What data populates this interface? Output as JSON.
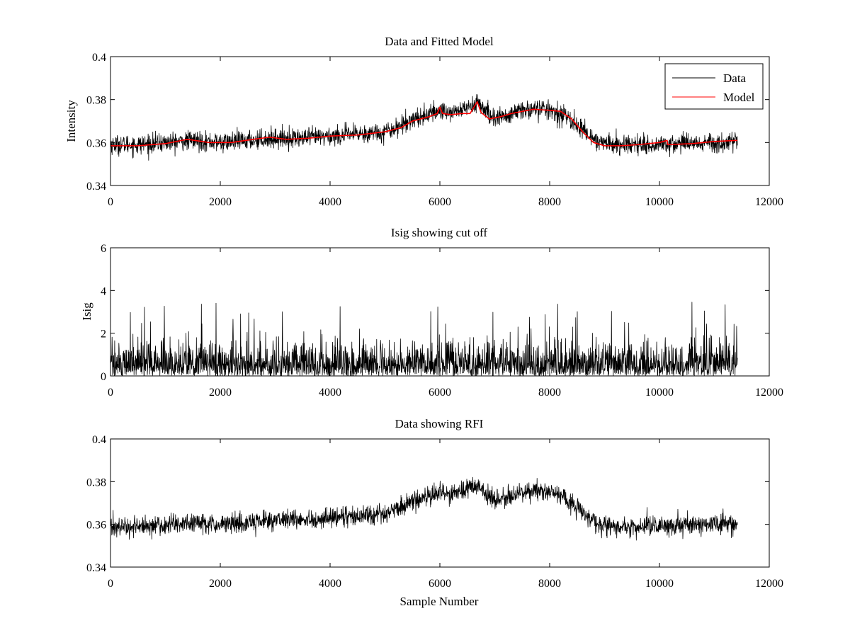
{
  "figure": {
    "background": "#ffffff"
  },
  "chart_data": [
    {
      "type": "line",
      "title": "Data and Fitted Model",
      "xlabel": "",
      "ylabel": "Intensity",
      "xlim": [
        0,
        12000
      ],
      "ylim": [
        0.34,
        0.4
      ],
      "xticks": [
        0,
        2000,
        4000,
        6000,
        8000,
        10000,
        12000
      ],
      "yticks": [
        0.34,
        0.36,
        0.38,
        0.4
      ],
      "xtick_labels": [
        "0",
        "2000",
        "4000",
        "6000",
        "8000",
        "10000",
        "12000"
      ],
      "ytick_labels": [
        "0.34",
        "0.36",
        "0.38",
        "0.4"
      ],
      "grid": false,
      "legend": {
        "position": "top-right",
        "entries": [
          "Data",
          "Model"
        ]
      },
      "series": [
        {
          "name": "Data",
          "color": "#000000",
          "style": "noisy",
          "x_range": [
            0,
            11420
          ],
          "noise_amplitude": 0.004,
          "x": [
            0,
            500,
            1000,
            1500,
            2000,
            2500,
            3000,
            3500,
            4000,
            4500,
            5000,
            5300,
            5500,
            5800,
            6000,
            6200,
            6500,
            6700,
            6900,
            7200,
            7500,
            7800,
            8000,
            8300,
            8600,
            8900,
            9200,
            9500,
            10000,
            10500,
            11000,
            11420
          ],
          "y": [
            0.359,
            0.359,
            0.36,
            0.361,
            0.36,
            0.361,
            0.362,
            0.362,
            0.363,
            0.364,
            0.365,
            0.368,
            0.371,
            0.373,
            0.375,
            0.374,
            0.376,
            0.379,
            0.372,
            0.372,
            0.375,
            0.376,
            0.375,
            0.372,
            0.366,
            0.36,
            0.359,
            0.359,
            0.359,
            0.36,
            0.36,
            0.36
          ]
        },
        {
          "name": "Model",
          "color": "#ff0000",
          "style": "line",
          "x": [
            0,
            500,
            1000,
            1400,
            1800,
            2200,
            2600,
            2900,
            3200,
            3600,
            4000,
            4500,
            5000,
            5300,
            5500,
            5800,
            5950,
            6000,
            6050,
            6200,
            6400,
            6550,
            6680,
            6750,
            6900,
            7100,
            7300,
            7500,
            7700,
            8000,
            8200,
            8400,
            8600,
            8800,
            9000,
            9300,
            9600,
            10000,
            10140,
            10150,
            10600,
            11000,
            11420
          ],
          "y": [
            0.3585,
            0.3585,
            0.3595,
            0.3615,
            0.36,
            0.36,
            0.3615,
            0.3625,
            0.3615,
            0.362,
            0.363,
            0.3635,
            0.365,
            0.367,
            0.37,
            0.372,
            0.3735,
            0.3765,
            0.3735,
            0.373,
            0.3735,
            0.3735,
            0.379,
            0.374,
            0.371,
            0.372,
            0.3735,
            0.3745,
            0.3755,
            0.375,
            0.3745,
            0.371,
            0.365,
            0.36,
            0.3585,
            0.3585,
            0.359,
            0.36,
            0.361,
            0.359,
            0.3595,
            0.3605,
            0.361
          ]
        }
      ]
    },
    {
      "type": "line",
      "title": "Isig showing cut off",
      "xlabel": "",
      "ylabel": "Isig",
      "xlim": [
        0,
        12000
      ],
      "ylim": [
        0,
        6
      ],
      "xticks": [
        0,
        2000,
        4000,
        6000,
        8000,
        10000,
        12000
      ],
      "yticks": [
        0,
        2,
        4,
        6
      ],
      "xtick_labels": [
        "0",
        "2000",
        "4000",
        "6000",
        "8000",
        "10000",
        "12000"
      ],
      "ytick_labels": [
        "0",
        "2",
        "4",
        "6"
      ],
      "grid": false,
      "series": [
        {
          "color": "#000000",
          "style": "abs-noise",
          "x_range": [
            0,
            11420
          ],
          "typical_max": 2.2,
          "peak_max": 3.5
        }
      ]
    },
    {
      "type": "line",
      "title": "Data showing RFI",
      "xlabel": "Sample Number",
      "ylabel": "",
      "xlim": [
        0,
        12000
      ],
      "ylim": [
        0.34,
        0.4
      ],
      "xticks": [
        0,
        2000,
        4000,
        6000,
        8000,
        10000,
        12000
      ],
      "yticks": [
        0.34,
        0.36,
        0.38,
        0.4
      ],
      "xtick_labels": [
        "0",
        "2000",
        "4000",
        "6000",
        "8000",
        "10000",
        "12000"
      ],
      "ytick_labels": [
        "0.34",
        "0.36",
        "0.38",
        "0.4"
      ],
      "grid": false,
      "series": [
        {
          "color": "#000000",
          "style": "noisy",
          "x_range": [
            0,
            11420
          ],
          "noise_amplitude": 0.004,
          "x": [
            0,
            500,
            1000,
            1500,
            2000,
            2500,
            3000,
            3500,
            4000,
            4500,
            5000,
            5300,
            5500,
            5800,
            6000,
            6200,
            6500,
            6700,
            6900,
            7200,
            7500,
            7800,
            8000,
            8300,
            8600,
            8900,
            9200,
            9500,
            10000,
            10500,
            11000,
            11420
          ],
          "y": [
            0.359,
            0.359,
            0.36,
            0.361,
            0.36,
            0.361,
            0.362,
            0.362,
            0.363,
            0.364,
            0.365,
            0.368,
            0.371,
            0.373,
            0.375,
            0.374,
            0.376,
            0.379,
            0.372,
            0.372,
            0.375,
            0.376,
            0.375,
            0.372,
            0.366,
            0.36,
            0.359,
            0.359,
            0.359,
            0.36,
            0.36,
            0.36
          ]
        }
      ]
    }
  ]
}
